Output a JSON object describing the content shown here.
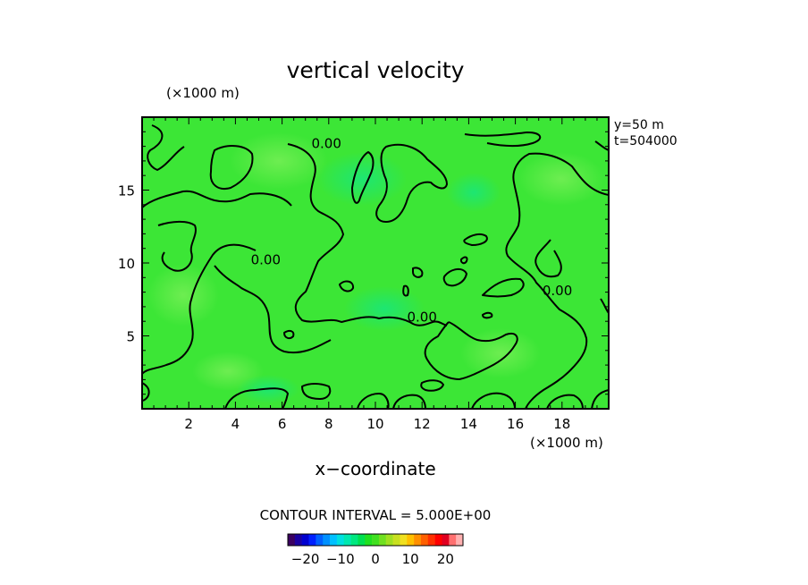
{
  "chart_data": {
    "type": "heatmap",
    "title": "vertical velocity",
    "xlabel": "x−coordinate",
    "x_unit": "(×1000 m)",
    "y_unit": "(×1000 m)",
    "xlim": [
      0,
      20
    ],
    "ylim": [
      0,
      20
    ],
    "x_ticks": [
      2,
      4,
      6,
      8,
      10,
      12,
      14,
      16,
      18
    ],
    "y_ticks": [
      5,
      10,
      15
    ],
    "info_lines": [
      "y=50  m",
      "t=504000"
    ],
    "contour_interval_text": "CONTOUR INTERVAL = 5.000E+00",
    "contour_labels": [
      {
        "text": "0.00",
        "x": 7.9,
        "y": 18.2
      },
      {
        "text": "0.00",
        "x": 5.3,
        "y": 10.2
      },
      {
        "text": "0.00",
        "x": 12.0,
        "y": 6.3
      },
      {
        "text": "0.00",
        "x": 17.8,
        "y": 8.1
      }
    ],
    "field_range": [
      -3,
      3
    ],
    "colorbar": {
      "vmin": -25,
      "vmax": 25,
      "tick_values": [
        -20,
        -10,
        0,
        10,
        20
      ],
      "tick_labels": [
        "−20",
        "−10",
        "0",
        "10",
        "20"
      ],
      "colors": [
        "#3a0060",
        "#1a00a0",
        "#0000d0",
        "#0020ff",
        "#0060ff",
        "#0090ff",
        "#00c0ff",
        "#00e0e0",
        "#00e8b0",
        "#00e880",
        "#00e050",
        "#20e020",
        "#40e020",
        "#70e020",
        "#a0e020",
        "#c8e020",
        "#f0e020",
        "#ffc000",
        "#ff9000",
        "#ff6000",
        "#ff3000",
        "#ff0000",
        "#e00020",
        "#ff7070",
        "#ffb0b0"
      ]
    }
  }
}
